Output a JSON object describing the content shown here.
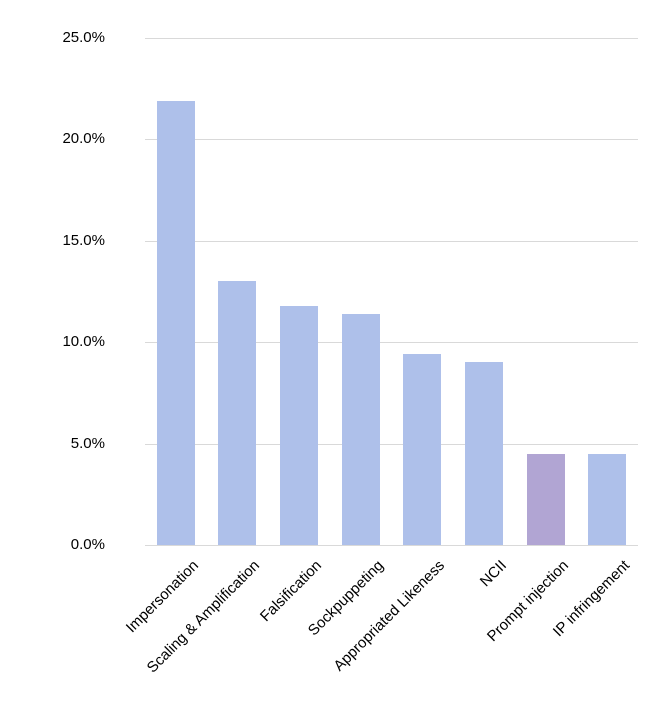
{
  "chart_data": {
    "type": "bar",
    "categories": [
      "Impersonation",
      "Scaling & Amplification",
      "Falsification",
      "Sockpuppeting",
      "Appropriated Likeness",
      "NCII",
      "Prompt injection",
      "IP infringement"
    ],
    "values": [
      21.9,
      13.0,
      11.8,
      11.4,
      9.4,
      9.0,
      4.5,
      4.5
    ],
    "bar_colors": [
      "#aec0ea",
      "#aec0ea",
      "#aec0ea",
      "#aec0ea",
      "#aec0ea",
      "#aec0ea",
      "#b1a5d3",
      "#aec0ea"
    ],
    "title": "",
    "xlabel": "",
    "ylabel": "",
    "ylim": [
      0,
      25
    ],
    "yticks": [
      "0.0%",
      "5.0%",
      "10.0%",
      "15.0%",
      "20.0%",
      "25.0%"
    ],
    "grid": true,
    "legend": "none"
  },
  "colors": {
    "bar_default": "#aec0ea",
    "bar_highlight": "#b1a5d3",
    "gridline": "#d9d9d9",
    "text": "#000000",
    "background": "#ffffff"
  }
}
